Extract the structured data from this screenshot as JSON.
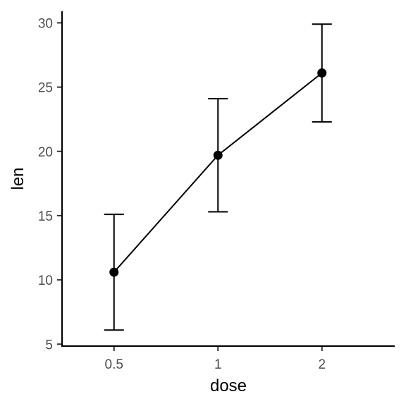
{
  "chart_data": {
    "type": "line",
    "title": "",
    "xlabel": "dose",
    "ylabel": "len",
    "categories": [
      "0.5",
      "1",
      "2"
    ],
    "series": [
      {
        "values": [
          10.6,
          19.7,
          26.1
        ],
        "error_low": [
          6.1,
          15.3,
          22.3
        ],
        "error_high": [
          15.1,
          24.1,
          29.9
        ],
        "color": "#000000"
      }
    ],
    "yticks": [
      5,
      10,
      15,
      20,
      25,
      30
    ],
    "ylim": [
      4.85,
      30.9
    ],
    "grid": false,
    "legend": "none"
  }
}
